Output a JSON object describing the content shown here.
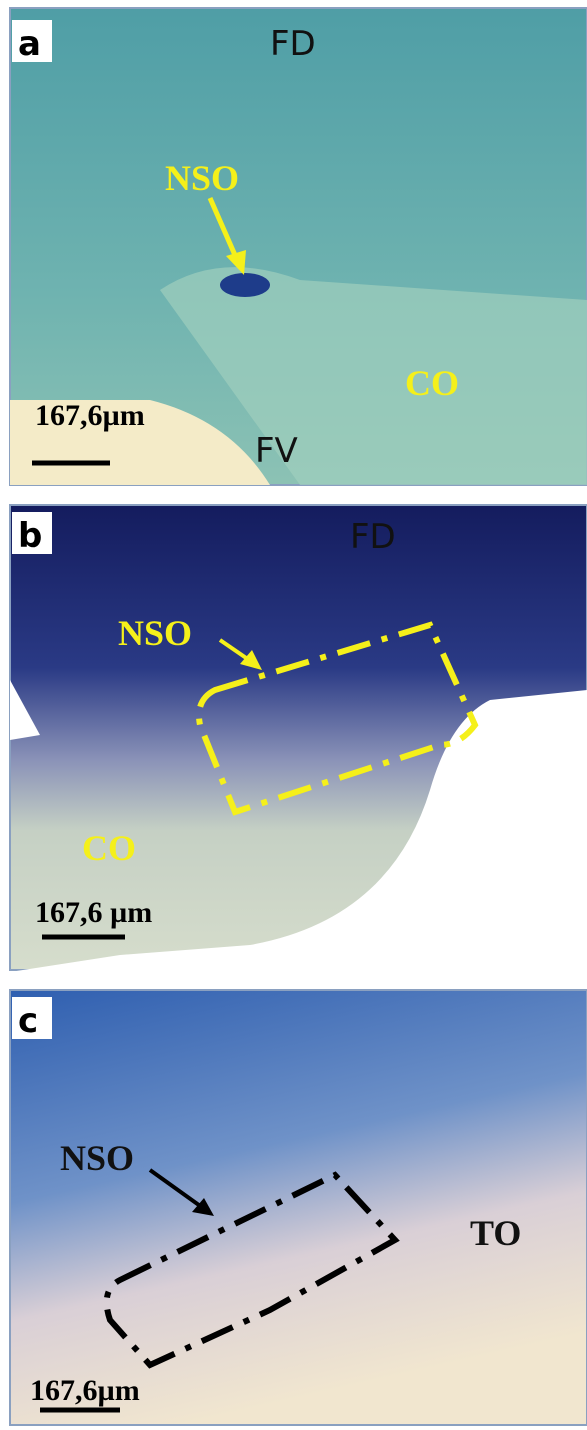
{
  "panels": [
    {
      "label": "a",
      "top_label": "FD",
      "nucleus": "NSO",
      "region": "CO",
      "bottom_label": "FV",
      "scale_bar": "167,6µm"
    },
    {
      "label": "b",
      "top_label": "FD",
      "nucleus": "NSO",
      "region": "CO",
      "scale_bar": "167,6 µm"
    },
    {
      "label": "c",
      "nucleus": "NSO",
      "region": "TO",
      "scale_bar": "167,6µm"
    }
  ]
}
